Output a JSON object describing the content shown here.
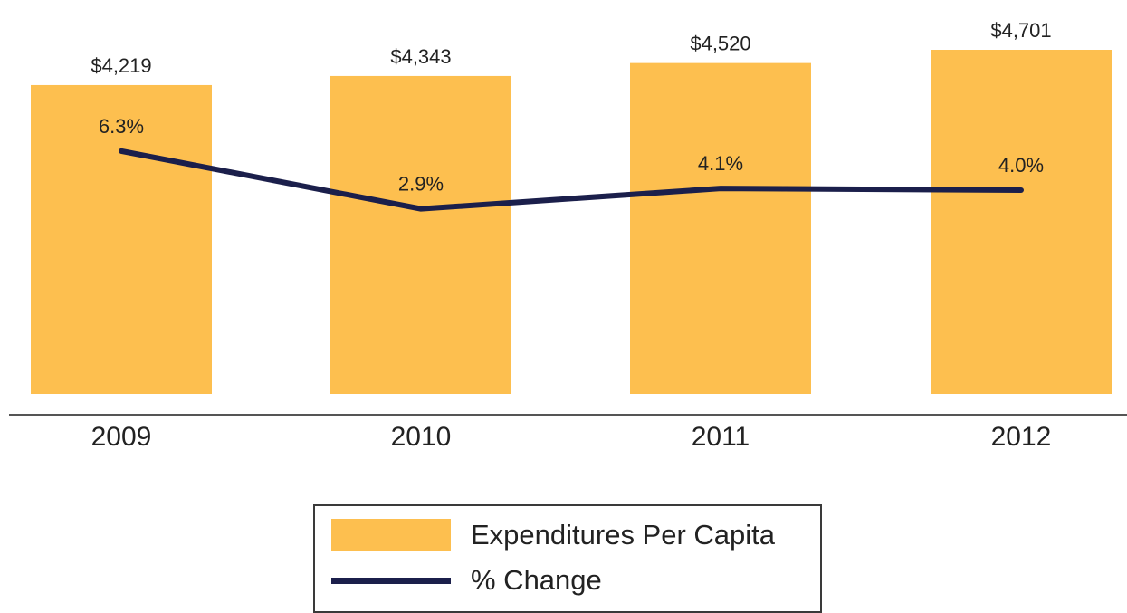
{
  "colors": {
    "bar": "#FDBF4F",
    "line": "#1b1f4b",
    "axis": "#555555",
    "text": "#222222"
  },
  "chart_data": {
    "type": "bar",
    "categories": [
      "2009",
      "2010",
      "2011",
      "2012"
    ],
    "series": [
      {
        "name": "Expenditures Per Capita",
        "type": "bar",
        "values": [
          4219,
          4343,
          4520,
          4701
        ],
        "labels": [
          "$4,219",
          "$4,343",
          "$4,520",
          "$4,701"
        ]
      },
      {
        "name": "% Change",
        "type": "line",
        "values": [
          6.3,
          2.9,
          4.1,
          4.0
        ],
        "labels": [
          "6.3%",
          "2.9%",
          "4.1%",
          "4.0%"
        ]
      }
    ],
    "ylim_bar": [
      0,
      5000
    ],
    "ylim_line": [
      -8.0,
      12.0
    ],
    "grid": false,
    "legend_position": "bottom-center"
  },
  "legend": {
    "items": [
      {
        "label": "Expenditures Per Capita",
        "kind": "bar"
      },
      {
        "label": "% Change",
        "kind": "line"
      }
    ]
  }
}
